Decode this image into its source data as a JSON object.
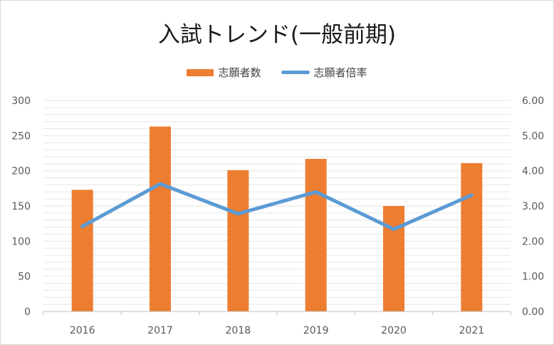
{
  "chart_data": {
    "type": "bar",
    "title": "入試トレンド(一般前期)",
    "categories": [
      "2016",
      "2017",
      "2018",
      "2019",
      "2020",
      "2021"
    ],
    "series": [
      {
        "name": "志願者数",
        "type": "bar",
        "axis": "left",
        "color": "#ed7d31",
        "values": [
          173,
          263,
          201,
          217,
          150,
          211
        ]
      },
      {
        "name": "志願者倍率",
        "type": "line",
        "axis": "right",
        "color": "#5b9bd5",
        "values": [
          2.42,
          3.63,
          2.78,
          3.4,
          2.34,
          3.31
        ]
      }
    ],
    "y_left": {
      "ylim": [
        0,
        300
      ],
      "ticks": [
        "0",
        "50",
        "100",
        "150",
        "200",
        "250",
        "300"
      ]
    },
    "y_right": {
      "ylim": [
        0,
        6
      ],
      "ticks": [
        "0.00",
        "1.00",
        "2.00",
        "3.00",
        "4.00",
        "5.00",
        "6.00"
      ]
    },
    "legend": "top",
    "grid": true
  }
}
